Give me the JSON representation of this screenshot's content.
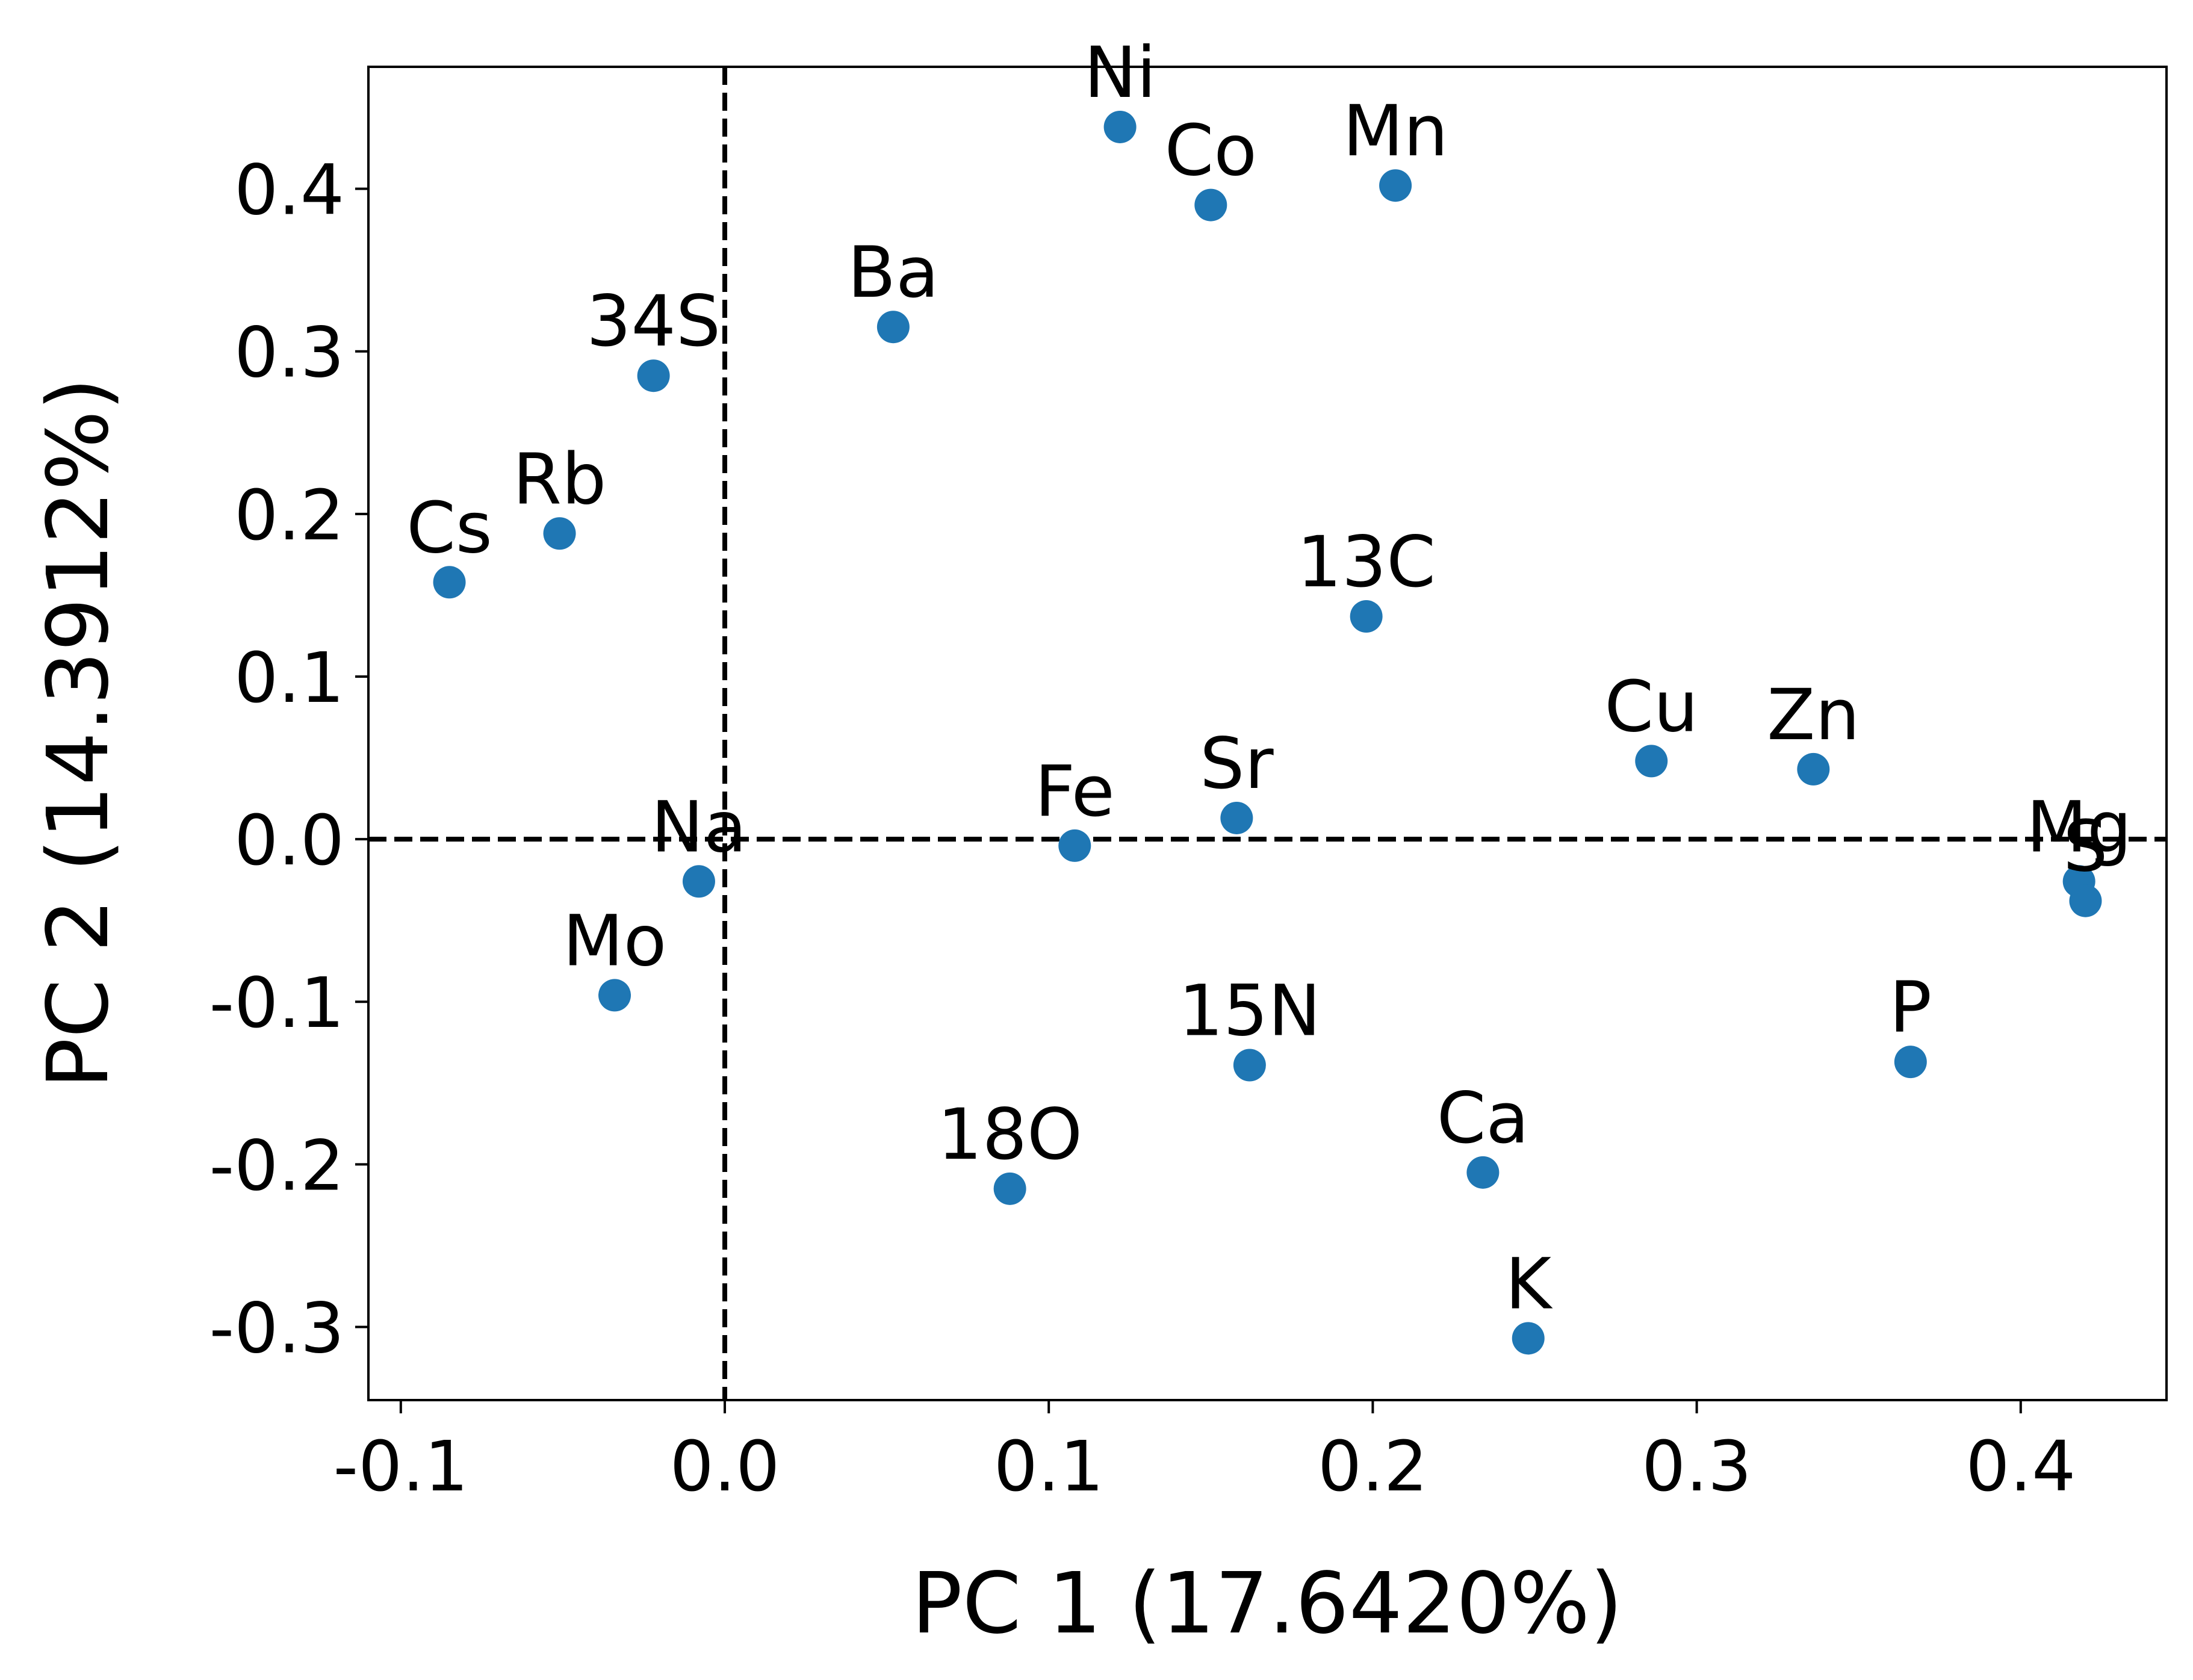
{
  "chart_data": {
    "type": "scatter",
    "title": "",
    "xlabel": "PC 1 (17.6420%)",
    "ylabel": "PC 2 (14.3912%)",
    "xlim": [
      -0.11,
      0.445
    ],
    "ylim": [
      -0.345,
      0.475
    ],
    "x_ticks": [
      {
        "value": -0.1,
        "label": "-0.1"
      },
      {
        "value": 0.0,
        "label": "0.0"
      },
      {
        "value": 0.1,
        "label": "0.1"
      },
      {
        "value": 0.2,
        "label": "0.2"
      },
      {
        "value": 0.3,
        "label": "0.3"
      },
      {
        "value": 0.4,
        "label": "0.4"
      }
    ],
    "y_ticks": [
      {
        "value": -0.3,
        "label": "-0.3"
      },
      {
        "value": -0.2,
        "label": "-0.2"
      },
      {
        "value": -0.1,
        "label": "-0.1"
      },
      {
        "value": 0.0,
        "label": "0.0"
      },
      {
        "value": 0.1,
        "label": "0.1"
      },
      {
        "value": 0.2,
        "label": "0.2"
      },
      {
        "value": 0.3,
        "label": "0.3"
      },
      {
        "value": 0.4,
        "label": "0.4"
      }
    ],
    "reference_lines": {
      "x": 0,
      "y": 0,
      "style": "dashed"
    },
    "grid": false,
    "marker_color": "#1f77b4",
    "points": [
      {
        "label": "Ni",
        "x": 0.122,
        "y": 0.438
      },
      {
        "label": "Co",
        "x": 0.15,
        "y": 0.39
      },
      {
        "label": "Mn",
        "x": 0.207,
        "y": 0.402
      },
      {
        "label": "Ba",
        "x": 0.052,
        "y": 0.315
      },
      {
        "label": "34S",
        "x": -0.022,
        "y": 0.285
      },
      {
        "label": "Rb",
        "x": -0.051,
        "y": 0.188
      },
      {
        "label": "Cs",
        "x": -0.085,
        "y": 0.158
      },
      {
        "label": "13C",
        "x": 0.198,
        "y": 0.137
      },
      {
        "label": "Cu",
        "x": 0.286,
        "y": 0.048
      },
      {
        "label": "Zn",
        "x": 0.336,
        "y": 0.043
      },
      {
        "label": "Sr",
        "x": 0.158,
        "y": 0.013
      },
      {
        "label": "Fe",
        "x": 0.108,
        "y": -0.004
      },
      {
        "label": "Na",
        "x": -0.008,
        "y": -0.026
      },
      {
        "label": "Mg",
        "x": 0.418,
        "y": -0.026
      },
      {
        "label": "S",
        "x": 0.42,
        "y": -0.038
      },
      {
        "label": "Mo",
        "x": -0.034,
        "y": -0.096
      },
      {
        "label": "P",
        "x": 0.366,
        "y": -0.137
      },
      {
        "label": "15N",
        "x": 0.162,
        "y": -0.139
      },
      {
        "label": "Ca",
        "x": 0.234,
        "y": -0.205
      },
      {
        "label": "18O",
        "x": 0.088,
        "y": -0.215
      },
      {
        "label": "K",
        "x": 0.248,
        "y": -0.307
      }
    ]
  }
}
